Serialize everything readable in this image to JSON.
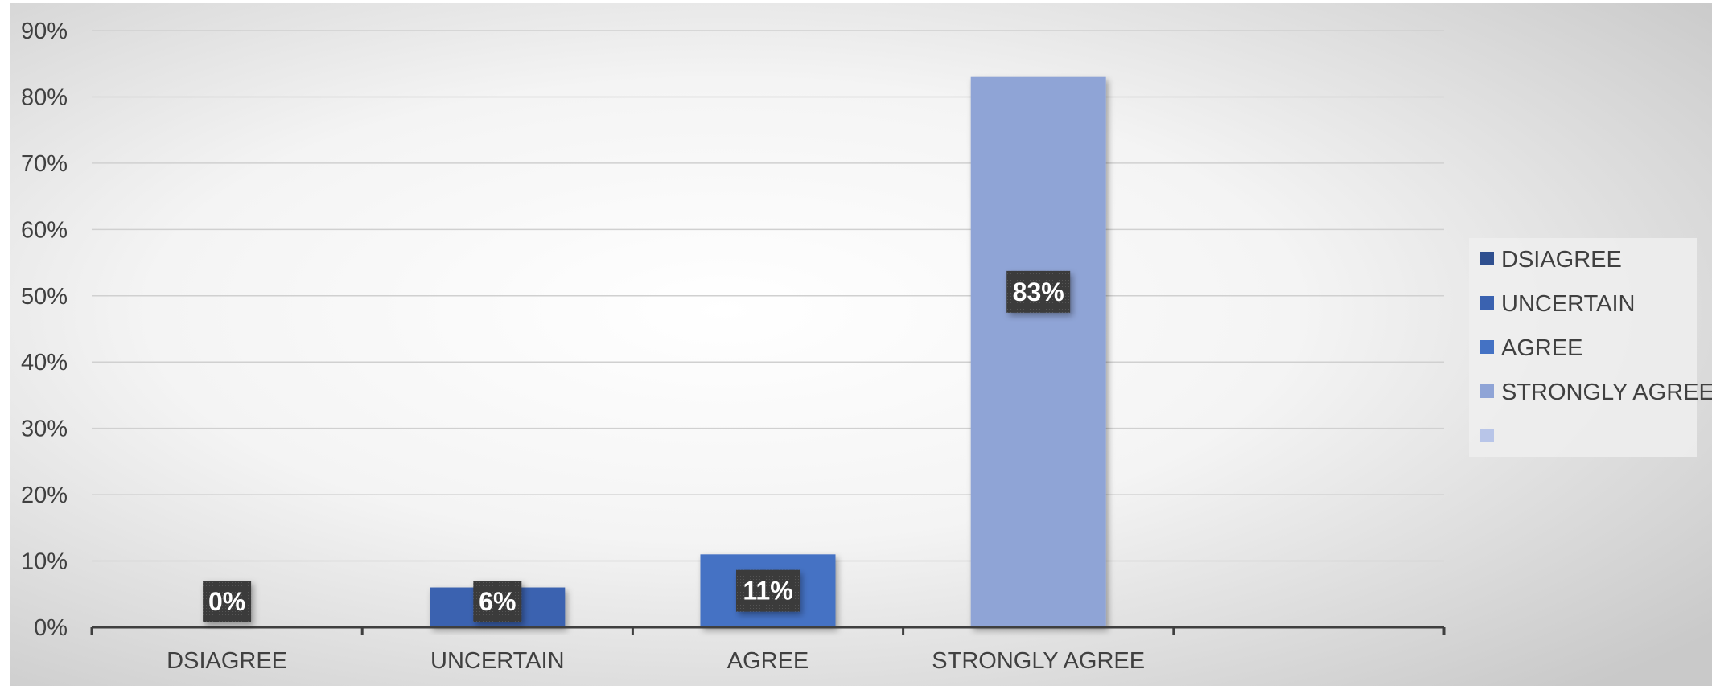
{
  "chart_data": {
    "type": "bar",
    "categories": [
      "DSIAGREE",
      "UNCERTAIN",
      "AGREE",
      "STRONGLY AGREE",
      ""
    ],
    "values": [
      0,
      6,
      11,
      83,
      null
    ],
    "data_labels": [
      "0%",
      "6%",
      "11%",
      "83%",
      ""
    ],
    "bar_colors": [
      "#2f4f8f",
      "#3a62b0",
      "#4472c4",
      "#8fa4d6",
      "#b8c5e8"
    ],
    "ylim": [
      0,
      90
    ],
    "yticks": [
      0,
      10,
      20,
      30,
      40,
      50,
      60,
      70,
      80,
      90
    ],
    "ytick_labels": [
      "0%",
      "10%",
      "20%",
      "30%",
      "40%",
      "50%",
      "60%",
      "70%",
      "80%",
      "90%"
    ],
    "grid": true,
    "legend": {
      "placement": "right",
      "entries": [
        {
          "label": "DSIAGREE",
          "color": "#2f4f8f"
        },
        {
          "label": "UNCERTAIN",
          "color": "#3a62b0"
        },
        {
          "label": "AGREE",
          "color": "#4472c4"
        },
        {
          "label": "STRONGLY AGREE",
          "color": "#8fa4d6"
        },
        {
          "label": "",
          "color": "#b8c5e8"
        }
      ]
    },
    "title": "",
    "xlabel": "",
    "ylabel": ""
  }
}
